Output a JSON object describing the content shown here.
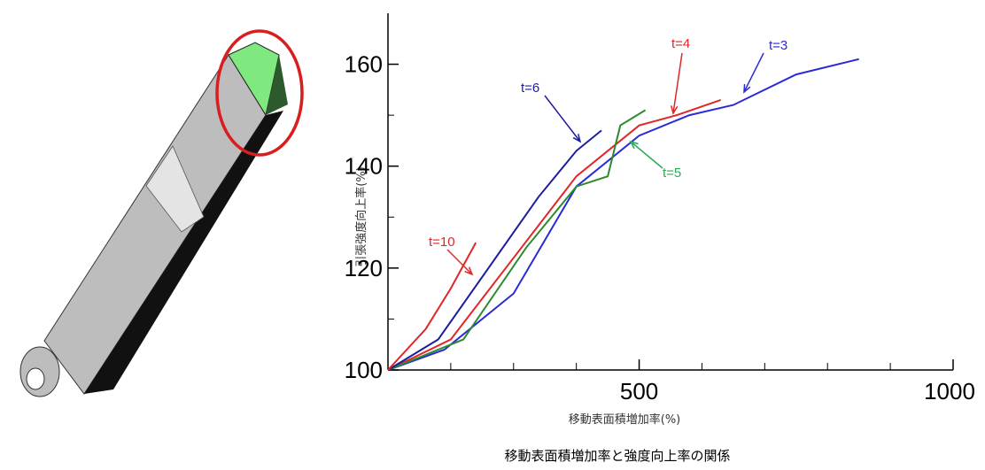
{
  "chart_data": {
    "type": "line",
    "caption": "移動表面積増加率と強度向上率の関係",
    "x_label": "移動表面積増加率(%)",
    "y_label": "引張強度向上率(%)",
    "xlim": [
      100,
      1000
    ],
    "xticks": [
      500,
      1000
    ],
    "x_minor_ticks": [
      200,
      300,
      400,
      600,
      700,
      800,
      900
    ],
    "ylim": [
      100,
      170
    ],
    "yticks": [
      100,
      120,
      140,
      160
    ],
    "y_minor_ticks": [
      110,
      130,
      150
    ],
    "series": [
      {
        "name": "t=3",
        "color": "#2a2ad8",
        "x": [
          100,
          190,
          300,
          400,
          500,
          580,
          650,
          750,
          850
        ],
        "values": [
          100,
          104,
          115,
          136,
          146,
          150,
          152,
          158,
          161
        ]
      },
      {
        "name": "t=4",
        "color": "#e02626",
        "x": [
          100,
          200,
          300,
          400,
          500,
          560,
          630
        ],
        "values": [
          100,
          106,
          122,
          138,
          148,
          150,
          153
        ]
      },
      {
        "name": "t=5",
        "color": "#2e8a2e",
        "x": [
          100,
          220,
          320,
          400,
          450,
          470,
          510
        ],
        "values": [
          100,
          106,
          124,
          136,
          138,
          148,
          151
        ]
      },
      {
        "name": "t=6",
        "color": "#1c1ca0",
        "x": [
          100,
          180,
          260,
          340,
          400,
          440
        ],
        "values": [
          100,
          106,
          120,
          134,
          143,
          147
        ]
      },
      {
        "name": "t=10",
        "color": "#e02626",
        "x": [
          100,
          160,
          200,
          240
        ],
        "values": [
          100,
          108,
          116,
          125
        ]
      }
    ]
  }
}
